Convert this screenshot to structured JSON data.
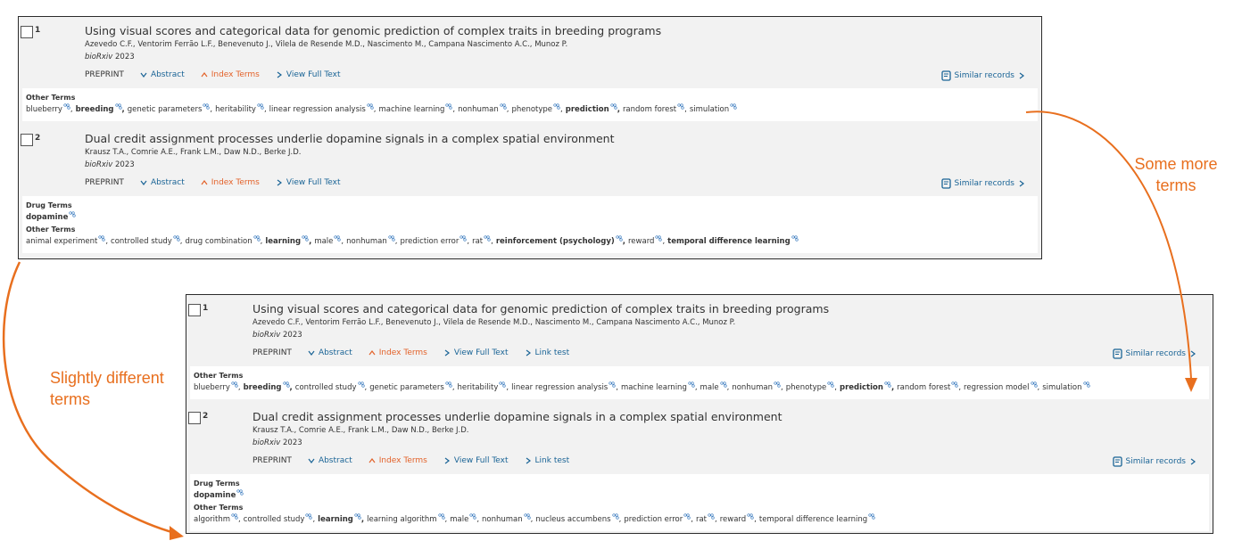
{
  "panels": [
    {
      "records": [
        {
          "number": "1",
          "title": "Using visual scores and categorical data for genomic prediction of complex traits in breeding programs",
          "authors": "Azevedo C.F., Ventorim Ferrão L.F., Benevenuto J., Vilela de Resende M.D., Nascimento M., Campana Nascimento A.C., Munoz P.",
          "journal": "bioRxiv",
          "year": "2023",
          "actions": [
            {
              "text": "PREPRINT"
            },
            {
              "text": "Abstract",
              "icon": "down"
            },
            {
              "text": "Index Terms",
              "icon": "up"
            },
            {
              "text": "View Full Text",
              "icon": "right"
            }
          ],
          "similar": "Similar records",
          "term_groups": [
            {
              "heading": "Other Terms",
              "terms": [
                {
                  "text": "blueberry"
                },
                {
                  "text": "breeding",
                  "bold": true
                },
                {
                  "text": "genetic parameters"
                },
                {
                  "text": "heritability"
                },
                {
                  "text": "linear regression analysis"
                },
                {
                  "text": "machine learning"
                },
                {
                  "text": "nonhuman"
                },
                {
                  "text": "phenotype"
                },
                {
                  "text": "prediction",
                  "bold": true
                },
                {
                  "text": "random forest"
                },
                {
                  "text": "simulation"
                }
              ]
            }
          ]
        },
        {
          "number": "2",
          "title": "Dual credit assignment processes underlie dopamine signals in a complex spatial environment",
          "authors": "Krausz T.A., Comrie A.E., Frank L.M., Daw N.D., Berke J.D.",
          "journal": "bioRxiv",
          "year": "2023",
          "actions": [
            {
              "text": "PREPRINT"
            },
            {
              "text": "Abstract",
              "icon": "down"
            },
            {
              "text": "Index Terms",
              "icon": "up"
            },
            {
              "text": "View Full Text",
              "icon": "right"
            }
          ],
          "similar": "Similar records",
          "term_groups": [
            {
              "heading": "Drug Terms",
              "terms": [
                {
                  "text": "dopamine",
                  "bold": true
                }
              ]
            },
            {
              "heading": "Other Terms",
              "terms": [
                {
                  "text": "animal experiment"
                },
                {
                  "text": "controlled study"
                },
                {
                  "text": "drug combination"
                },
                {
                  "text": "learning",
                  "bold": true
                },
                {
                  "text": "male"
                },
                {
                  "text": "nonhuman"
                },
                {
                  "text": "prediction error"
                },
                {
                  "text": "rat"
                },
                {
                  "text": "reinforcement (psychology)",
                  "bold": true
                },
                {
                  "text": "reward"
                },
                {
                  "text": "temporal difference learning",
                  "bold": true
                }
              ]
            }
          ]
        }
      ]
    },
    {
      "records": [
        {
          "number": "1",
          "title": "Using visual scores and categorical data for genomic prediction of complex traits in breeding programs",
          "authors": "Azevedo C.F., Ventorim Ferrão L.F., Benevenuto J., Vilela de Resende M.D., Nascimento M., Campana Nascimento A.C., Munoz P.",
          "journal": "bioRxiv",
          "year": "2023",
          "actions": [
            {
              "text": "PREPRINT"
            },
            {
              "text": "Abstract",
              "icon": "down"
            },
            {
              "text": "Index Terms",
              "icon": "up"
            },
            {
              "text": "View Full Text",
              "icon": "right"
            },
            {
              "text": "Link test",
              "icon": "right"
            }
          ],
          "similar": "Similar records",
          "term_groups": [
            {
              "heading": "Other Terms",
              "terms": [
                {
                  "text": "blueberry"
                },
                {
                  "text": "breeding",
                  "bold": true
                },
                {
                  "text": "controlled study"
                },
                {
                  "text": "genetic parameters"
                },
                {
                  "text": "heritability"
                },
                {
                  "text": "linear regression analysis"
                },
                {
                  "text": "machine learning"
                },
                {
                  "text": "male"
                },
                {
                  "text": "nonhuman"
                },
                {
                  "text": "phenotype"
                },
                {
                  "text": "prediction",
                  "bold": true
                },
                {
                  "text": "random forest"
                },
                {
                  "text": "regression model"
                },
                {
                  "text": "simulation"
                }
              ]
            }
          ]
        },
        {
          "number": "2",
          "title": "Dual credit assignment processes underlie dopamine signals in a complex spatial environment",
          "authors": "Krausz T.A., Comrie A.E., Frank L.M., Daw N.D., Berke J.D.",
          "journal": "bioRxiv",
          "year": "2023",
          "actions": [
            {
              "text": "PREPRINT"
            },
            {
              "text": "Abstract",
              "icon": "down"
            },
            {
              "text": "Index Terms",
              "icon": "up"
            },
            {
              "text": "View Full Text",
              "icon": "right"
            },
            {
              "text": "Link test",
              "icon": "right"
            }
          ],
          "similar": "Similar records",
          "term_groups": [
            {
              "heading": "Drug Terms",
              "terms": [
                {
                  "text": "dopamine",
                  "bold": true
                }
              ]
            },
            {
              "heading": "Other Terms",
              "terms": [
                {
                  "text": "algorithm"
                },
                {
                  "text": "controlled study"
                },
                {
                  "text": "learning",
                  "bold": true
                },
                {
                  "text": "learning algorithm"
                },
                {
                  "text": "male"
                },
                {
                  "text": "nonhuman"
                },
                {
                  "text": "nucleus accumbens"
                },
                {
                  "text": "prediction error"
                },
                {
                  "text": "rat"
                },
                {
                  "text": "reward"
                },
                {
                  "text": "temporal difference learning"
                }
              ]
            }
          ]
        }
      ]
    }
  ],
  "annotations": {
    "right": "Some more terms",
    "left": "Slightly different terms"
  }
}
